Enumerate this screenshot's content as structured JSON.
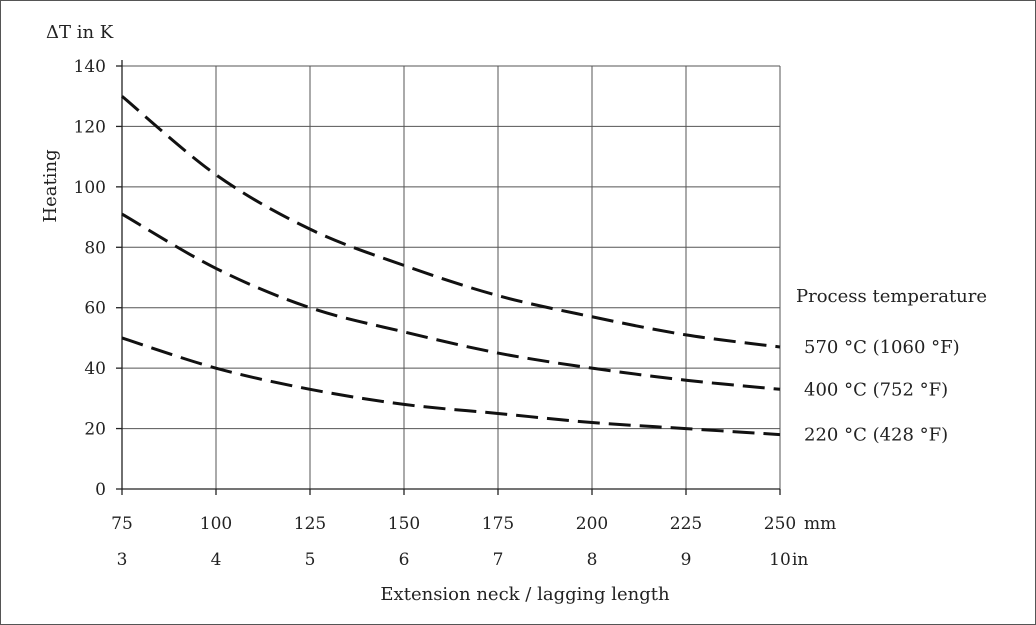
{
  "chart_data": {
    "type": "line",
    "ylabel_units": "ΔT in K",
    "ylabel": "Heating",
    "xlabel": "Extension neck / lagging length",
    "ylim": [
      0,
      140
    ],
    "yticks": [
      "0",
      "20",
      "40",
      "60",
      "80",
      "100",
      "120",
      "140"
    ],
    "xlim": [
      75,
      250
    ],
    "xticks_mm": [
      "75",
      "100",
      "125",
      "150",
      "175",
      "200",
      "225",
      "250"
    ],
    "x_unit_mm": "mm",
    "xticks_in": [
      "3",
      "4",
      "5",
      "6",
      "7",
      "8",
      "9",
      "10"
    ],
    "x_unit_in": "in",
    "grid": true,
    "legend_title": "Process temperature",
    "legend_placement": "right",
    "x": [
      75,
      100,
      125,
      150,
      175,
      200,
      225,
      250
    ],
    "series": [
      {
        "name": "570 °C (1060 °F)",
        "values": [
          130,
          104,
          86,
          74,
          64,
          57,
          51,
          47
        ]
      },
      {
        "name": "400 °C (752 °F)",
        "values": [
          91,
          73,
          60,
          52,
          45,
          40,
          36,
          33
        ]
      },
      {
        "name": "220 °C (428 °F)",
        "values": [
          50,
          40,
          33,
          28,
          25,
          22,
          20,
          18
        ]
      }
    ]
  }
}
